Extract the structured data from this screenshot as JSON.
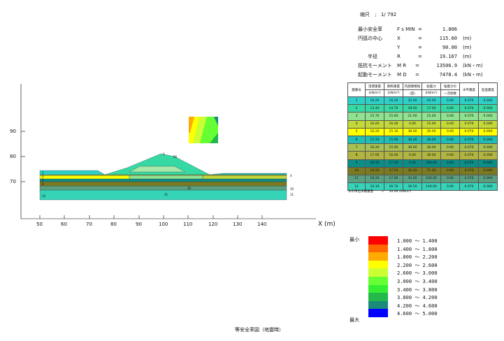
{
  "scale": {
    "label": "縮尺",
    "sep": ";",
    "value": "1/ 792"
  },
  "results": [
    {
      "label": "最小安全率",
      "sym": "F s MIN",
      "eq": "=",
      "value": "1.806",
      "unit": ""
    },
    {
      "label": "円弧の中心",
      "sym": "X",
      "eq": "=",
      "value": "115.00",
      "unit": "(m)"
    },
    {
      "label": "",
      "sym": "Y",
      "eq": "=",
      "value": "90.00",
      "unit": "(m)"
    },
    {
      "label": "半径",
      "sym": "R",
      "eq": "=",
      "value": "19.167",
      "unit": "(m)"
    },
    {
      "label": "抵抗モーメント",
      "sym": "M R",
      "eq": "=",
      "value": "13506.9",
      "unit": "(kN・m)"
    },
    {
      "label": "起動モーメント",
      "sym": "M D",
      "eq": "=",
      "value": "7478.4",
      "unit": "(kN・m)"
    }
  ],
  "table": {
    "headers": [
      "層番号",
      "湿潤重量",
      "飽和重量",
      "内部摩擦角",
      "粘着力",
      "粘着力の",
      "水平震度",
      "鉛直震度"
    ],
    "subheaders": [
      "",
      "(kN/m³)",
      "(kN/m³)",
      "(度)",
      "(kN/m²)",
      "一次係数",
      "",
      ""
    ],
    "rows": [
      {
        "no": "1",
        "c": [
          "16.20",
          "16.20",
          "35.00",
          "20.00",
          "0.00",
          "0.070",
          "0.000"
        ],
        "color": "#2fcfc9"
      },
      {
        "no": "2",
        "c": [
          "13.40",
          "14.70",
          "28.00",
          "17.00",
          "0.00",
          "0.070",
          "0.000"
        ],
        "color": "#36d8a4"
      },
      {
        "no": "3",
        "c": [
          "15.70",
          "15.60",
          "21.00",
          "15.00",
          "0.00",
          "0.070",
          "0.000"
        ],
        "color": "#8fe28f"
      },
      {
        "no": "4",
        "c": [
          "16.00",
          "16.00",
          "0.00",
          "15.00",
          "0.00",
          "0.070",
          "0.000"
        ],
        "color": "#c4d83a"
      },
      {
        "no": "5",
        "c": [
          "16.20",
          "15.10",
          "38.00",
          "30.00",
          "0.00",
          "0.070",
          "0.000"
        ],
        "color": "#ffff00"
      },
      {
        "no": "6",
        "c": [
          "15.50",
          "15.90",
          "38.00",
          "38.00",
          "0.00",
          "0.070",
          "0.000"
        ],
        "color": "#1fbdb5"
      },
      {
        "no": "7",
        "c": [
          "16.20",
          "15.90",
          "38.00",
          "38.00",
          "0.00",
          "0.070",
          "0.000"
        ],
        "color": "#a8bf52"
      },
      {
        "no": "8",
        "c": [
          "17.00",
          "16.00",
          "0.00",
          "38.00",
          "0.00",
          "0.070",
          "0.000"
        ],
        "color": "#b2b441"
      },
      {
        "no": "9",
        "c": [
          "16.50",
          "17.20",
          "0.00",
          "160.00",
          "0.00",
          "0.070",
          "0.000"
        ],
        "color": "#0b8e88"
      },
      {
        "no": "10",
        "c": [
          "16.50",
          "17.50",
          "36.00",
          "71.00",
          "0.00",
          "0.070",
          "0.000"
        ],
        "color": "#7a7a22"
      },
      {
        "no": "11",
        "c": [
          "16.20",
          "17.00",
          "33.00",
          "100.00",
          "0.00",
          "0.070",
          "0.000"
        ],
        "color": "#5aa080"
      },
      {
        "no": "12",
        "c": [
          "16.30",
          "16.70",
          "36.50",
          "146.00",
          "0.00",
          "0.070",
          "0.000"
        ],
        "color": "#35d3b8"
      }
    ]
  },
  "water_note": {
    "label": "水の単位体積重量",
    "eq": "=",
    "value": "10.00 (kN/m³)"
  },
  "axis": {
    "x_ticks": [
      "50",
      "60",
      "70",
      "80",
      "90",
      "100",
      "110",
      "120",
      "130",
      "140"
    ],
    "y_ticks": [
      "90",
      "80",
      "70"
    ],
    "x_label": "X (m)"
  },
  "legend": {
    "min_label": "最小",
    "max_label": "最大",
    "items": [
      {
        "range": "1.000 ～ 1.400",
        "color": "#ff0000"
      },
      {
        "range": "1.400 ～ 1.800",
        "color": "#ff6600"
      },
      {
        "range": "1.800 ～ 2.200",
        "color": "#ffaa00"
      },
      {
        "range": "2.200 ～ 2.600",
        "color": "#ffff00"
      },
      {
        "range": "2.600 ～ 3.000",
        "color": "#ccff33"
      },
      {
        "range": "3.000 ～ 3.400",
        "color": "#66ff33"
      },
      {
        "range": "3.400 ～ 3.800",
        "color": "#33ee33"
      },
      {
        "range": "3.800 ～ 4.200",
        "color": "#22b84a"
      },
      {
        "range": "4.200 ～ 4.600",
        "color": "#1a8a7a"
      },
      {
        "range": "4.600 ～ 5.000",
        "color": "#0000ff"
      }
    ]
  },
  "caption": "等安全率図（地震時）"
}
